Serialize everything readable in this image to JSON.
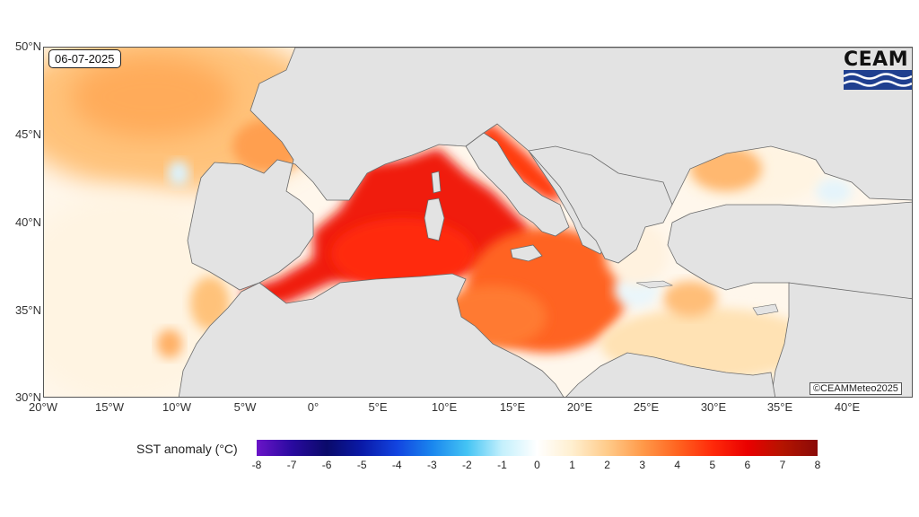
{
  "map": {
    "date": "06-07-2025",
    "copyright": "©CEAMMeteo2025",
    "logo_text": "CEAM",
    "lat_labels": [
      "50°N",
      "45°N",
      "40°N",
      "35°N",
      "30°N"
    ],
    "lon_labels": [
      "20°W",
      "15°W",
      "10°W",
      "5°W",
      "0°",
      "5°E",
      "10°E",
      "15°E",
      "20°E",
      "25°E",
      "30°E",
      "35°E",
      "40°E"
    ],
    "land_color": "#e3e3e3",
    "border_color": "#6a6a6a"
  },
  "colorbar": {
    "title": "SST anomaly (°C)",
    "ticks": [
      "-8",
      "-7",
      "-6",
      "-5",
      "-4",
      "-3",
      "-2",
      "-1",
      "0",
      "1",
      "2",
      "3",
      "4",
      "5",
      "6",
      "7",
      "8"
    ],
    "colors": [
      "#6a14c8",
      "#2a0aa0",
      "#0a0a6a",
      "#0a1aa8",
      "#1244e0",
      "#1a86ee",
      "#44c4f4",
      "#c4f0fc",
      "#ffffff",
      "#ffefcf",
      "#ffcb8a",
      "#ff9a4a",
      "#ff6420",
      "#ff2a0a",
      "#ea0000",
      "#b41400",
      "#8a0a08"
    ]
  }
}
